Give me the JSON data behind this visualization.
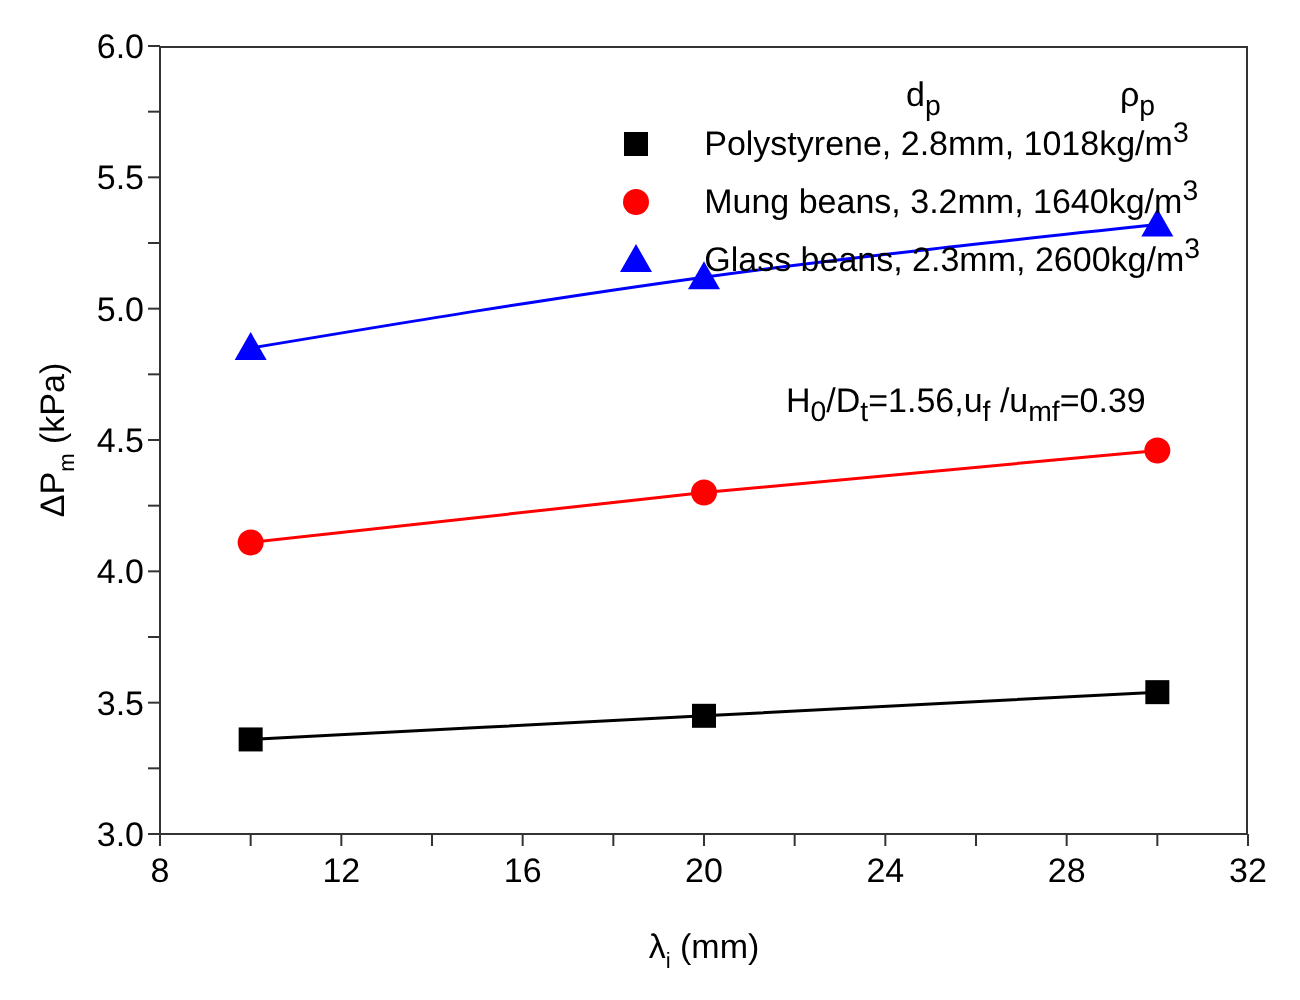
{
  "chart_data": {
    "type": "line",
    "xlabel": "λ$_{i}$ (mm)",
    "ylabel": "ΔP$_{m}$ (kPa)",
    "x": [
      10,
      20,
      30
    ],
    "series": [
      {
        "name": "Polystyrene,  2.8mm, 1018kg/m$^{3}$",
        "color": "#000000",
        "marker": "square",
        "values": [
          3.36,
          3.45,
          3.54
        ]
      },
      {
        "name": "Mung beans, 3.2mm, 1640kg/m$^{3}$",
        "color": "#ff0000",
        "marker": "circle",
        "values": [
          4.11,
          4.3,
          4.46
        ]
      },
      {
        "name": "Glass beans, 2.3mm, 2600kg/m$^{3}$",
        "color": "#0000ff",
        "marker": "triangle",
        "values": [
          4.85,
          5.12,
          5.32
        ]
      }
    ],
    "xlim": [
      8,
      32
    ],
    "xticks": [
      8,
      {
        "value": 10,
        "label": null
      },
      12,
      {
        "value": 14,
        "label": null
      },
      16,
      {
        "value": 18,
        "label": null
      },
      20,
      {
        "value": 22,
        "label": null
      },
      24,
      {
        "value": 26,
        "label": null
      },
      28,
      {
        "value": 30,
        "label": null
      },
      32
    ],
    "ylim": [
      3,
      6
    ],
    "yticks": [
      {
        "value": 3,
        "label": "3.0"
      },
      {
        "value": 3.25,
        "label": null
      },
      {
        "value": 3.5,
        "label": "3.5"
      },
      {
        "value": 3.75,
        "label": null
      },
      {
        "value": 4,
        "label": "4.0"
      },
      {
        "value": 4.25,
        "label": null
      },
      {
        "value": 4.5,
        "label": "4.5"
      },
      {
        "value": 4.75,
        "label": null
      },
      {
        "value": 5,
        "label": "5.0"
      },
      {
        "value": 5.25,
        "label": null
      },
      {
        "value": 5.5,
        "label": "5.5"
      },
      {
        "value": 5.75,
        "label": null
      },
      {
        "value": 6,
        "label": "6.0"
      }
    ],
    "annotations": [
      "d$_{p}$",
      "ρ$_{p}$",
      "H$_{0}$/D$_{t}$=1.56,u$_{f}$ /u$_{mf}$=0.39"
    ],
    "legend": "top right",
    "grid": false,
    "line_style": "solid"
  }
}
